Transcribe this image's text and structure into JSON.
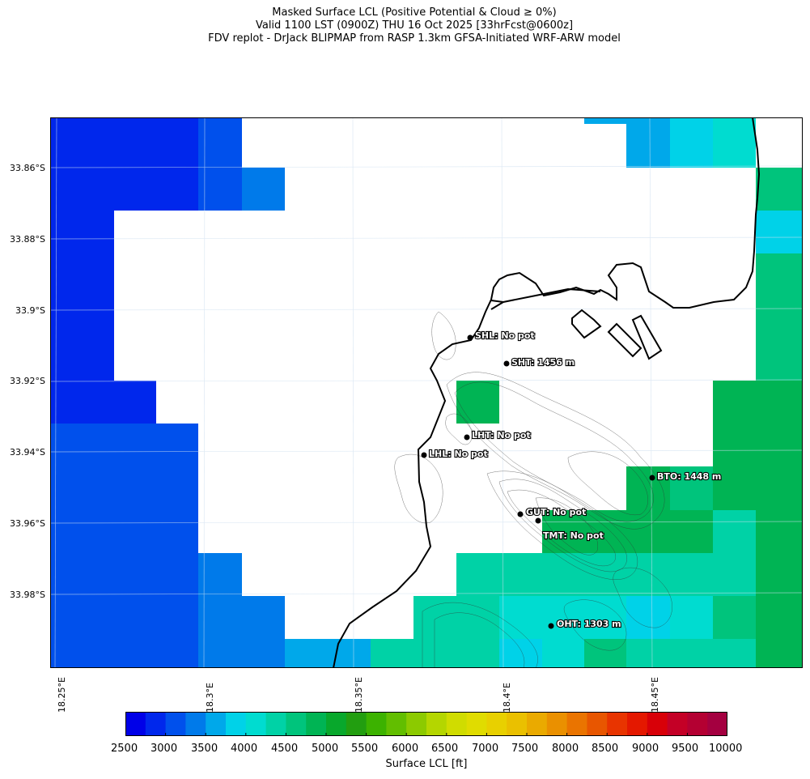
{
  "title": {
    "line1": "Masked Surface LCL (Positive Potential & Cloud ≥ 0%)",
    "line2": "Valid 1100 LST (0900Z) THU 16 Oct 2025 [33hrFcst@0600z]",
    "line3": "FDV replot - DrJack BLIPMAP from RASP 1.3km GFSA-Initiated WRF-ARW model"
  },
  "axes": {
    "y_ticks": [
      "33.86°S",
      "33.88°S",
      "33.9°S",
      "33.92°S",
      "33.94°S",
      "33.96°S",
      "33.98°S"
    ],
    "x_ticks": [
      "18.25°E",
      "18.3°E",
      "18.35°E",
      "18.4°E",
      "18.45°E"
    ]
  },
  "sites": [
    {
      "label": "SHL: No pot"
    },
    {
      "label": "SHT: 1456 m"
    },
    {
      "label": "LHT: No pot"
    },
    {
      "label": "LHL: No pot"
    },
    {
      "label": "GUT: No pot"
    },
    {
      "label": "TMT: No pot"
    },
    {
      "label": "BTO: 1448 m"
    },
    {
      "label": "OHT: 1303 m"
    }
  ],
  "colorbar": {
    "label": "Surface LCL [ft]",
    "ticks": [
      "2500",
      "3000",
      "3500",
      "4000",
      "4500",
      "5000",
      "5500",
      "6000",
      "6500",
      "7000",
      "7500",
      "8000",
      "8500",
      "9000",
      "9500",
      "10000"
    ],
    "colors": [
      "#0000e8",
      "#0027ec",
      "#0050ec",
      "#007aea",
      "#00a8ea",
      "#00d2e8",
      "#00dcd0",
      "#00d2a6",
      "#00c47c",
      "#00b454",
      "#08a82c",
      "#229e10",
      "#3cb200",
      "#62be00",
      "#8cca00",
      "#b4d600",
      "#d0dc00",
      "#e0dc00",
      "#e8d000",
      "#eac000",
      "#eaaa00",
      "#ea9000",
      "#ea7400",
      "#e85600",
      "#e83400",
      "#e41800",
      "#d80008",
      "#c40026",
      "#b40032",
      "#a40040"
    ]
  },
  "field_colors": {
    "blue_deep": "#0027ec",
    "blue_mid": "#0050ec",
    "blue_light": "#007aea",
    "sky": "#00a8ea",
    "cyan": "#00d2e8",
    "aqua": "#00dcd0",
    "teal": "#00d2a6",
    "green": "#00c47c",
    "green_dark": "#00b454",
    "masked": "#ffffff"
  }
}
